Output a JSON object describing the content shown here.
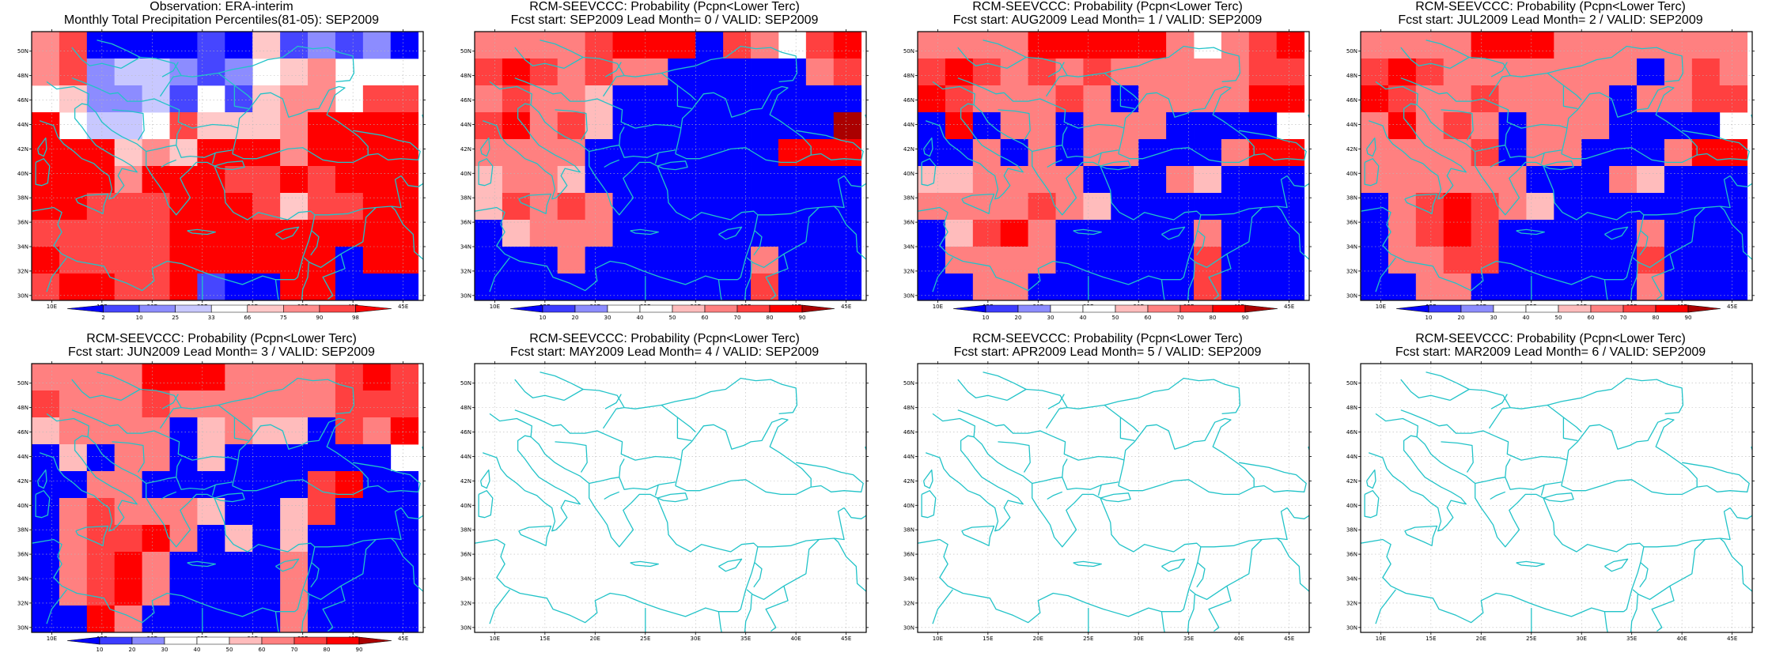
{
  "map_extent": {
    "lon": [
      8,
      47
    ],
    "lat": [
      29.6,
      51.6
    ]
  },
  "lon_ticks": [
    {
      "value": 10,
      "label": "10E"
    },
    {
      "value": 15,
      "label": "15E"
    },
    {
      "value": 20,
      "label": "20E"
    },
    {
      "value": 25,
      "label": "25E"
    },
    {
      "value": 30,
      "label": "30E"
    },
    {
      "value": 35,
      "label": "35E"
    },
    {
      "value": 40,
      "label": "40E"
    },
    {
      "value": 45,
      "label": "45E"
    }
  ],
  "lat_ticks": [
    {
      "value": 30,
      "label": "30N"
    },
    {
      "value": 32,
      "label": "32N"
    },
    {
      "value": 34,
      "label": "34N"
    },
    {
      "value": 36,
      "label": "36N"
    },
    {
      "value": 38,
      "label": "38N"
    },
    {
      "value": 40,
      "label": "40N"
    },
    {
      "value": 42,
      "label": "42N"
    },
    {
      "value": 44,
      "label": "44N"
    },
    {
      "value": 46,
      "label": "46N"
    },
    {
      "value": 48,
      "label": "48N"
    },
    {
      "value": 50,
      "label": "50N"
    }
  ],
  "grid": {
    "lon_start": 8,
    "lon_step": 2.75,
    "cols": 14,
    "lat_start": 29.6,
    "lat_step": 2.2,
    "rows": 10
  },
  "colors": {
    "coast": "#22c3c8",
    "gridline": "#b8b8b8",
    "frame": "#000000"
  },
  "colorbars": {
    "obs": {
      "labels": [
        "2",
        "10",
        "25",
        "33",
        "66",
        "75",
        "90",
        "98"
      ],
      "colors": [
        "#0000ff",
        "#4646ff",
        "#8c8cff",
        "#c8c8ff",
        "#ffffff",
        "#ffc8c8",
        "#ff8c8c",
        "#ff4646",
        "#ff0000"
      ]
    },
    "prob": {
      "labels": [
        "10",
        "20",
        "30",
        "40",
        "50",
        "60",
        "70",
        "80",
        "90"
      ],
      "colors": [
        "#0000ff",
        "#3c3cff",
        "#8c8cff",
        "#ffffff",
        "#ffffff",
        "#ffbcbc",
        "#ff8080",
        "#ff4040",
        "#ff0000",
        "#aa0000"
      ]
    }
  },
  "panels": [
    {
      "title1": "Observation: ERA-interim",
      "title2": "Monthly Total Precipitation Percentiles(81-05): SEP2009",
      "colorbar": "obs",
      "rows": [
        [
          6,
          7,
          0,
          0,
          0,
          0,
          1,
          0,
          5,
          1,
          2,
          1,
          2,
          0
        ],
        [
          6,
          7,
          2,
          3,
          3,
          2,
          1,
          2,
          4,
          5,
          6,
          4,
          4,
          4
        ],
        [
          4,
          5,
          2,
          2,
          3,
          1,
          4,
          1,
          5,
          6,
          6,
          4,
          7,
          7
        ],
        [
          8,
          4,
          3,
          3,
          4,
          7,
          5,
          5,
          5,
          6,
          8,
          8,
          8,
          8
        ],
        [
          8,
          8,
          8,
          5,
          6,
          5,
          8,
          8,
          8,
          6,
          8,
          8,
          8,
          8
        ],
        [
          8,
          8,
          8,
          6,
          8,
          8,
          8,
          7,
          7,
          8,
          7,
          8,
          8,
          8
        ],
        [
          8,
          8,
          7,
          7,
          7,
          8,
          8,
          8,
          7,
          5,
          7,
          7,
          8,
          8
        ],
        [
          7,
          7,
          7,
          7,
          7,
          8,
          8,
          8,
          8,
          8,
          8,
          8,
          8,
          8
        ],
        [
          8,
          7,
          7,
          7,
          7,
          8,
          8,
          8,
          8,
          8,
          8,
          0,
          8,
          8
        ],
        [
          7,
          8,
          8,
          7,
          7,
          8,
          1,
          0,
          0,
          8,
          8,
          0,
          0,
          0
        ]
      ]
    },
    {
      "title1": "RCM-SEEVCCC: Probability (Pcpn<Lower Terc)",
      "title2": "Fcst start: SEP2009   Lead Month= 0 / VALID: SEP2009",
      "colorbar": "prob",
      "rows": [
        [
          6,
          6,
          6,
          6,
          7,
          8,
          8,
          8,
          0,
          7,
          6,
          4,
          7,
          8
        ],
        [
          7,
          8,
          7,
          6,
          7,
          6,
          6,
          0,
          0,
          0,
          0,
          0,
          6,
          7
        ],
        [
          6,
          7,
          6,
          6,
          5,
          0,
          0,
          0,
          0,
          0,
          0,
          0,
          0,
          0
        ],
        [
          7,
          8,
          6,
          7,
          5,
          0,
          0,
          0,
          0,
          0,
          0,
          0,
          0,
          9
        ],
        [
          6,
          6,
          6,
          6,
          0,
          0,
          0,
          0,
          0,
          0,
          0,
          8,
          8,
          8
        ],
        [
          5,
          6,
          6,
          5,
          0,
          0,
          0,
          0,
          0,
          0,
          0,
          0,
          0,
          0
        ],
        [
          5,
          7,
          6,
          7,
          6,
          0,
          0,
          0,
          0,
          0,
          0,
          0,
          0,
          0
        ],
        [
          0,
          5,
          6,
          6,
          6,
          0,
          0,
          0,
          0,
          0,
          0,
          0,
          0,
          0
        ],
        [
          0,
          0,
          0,
          6,
          0,
          0,
          0,
          0,
          0,
          0,
          6,
          0,
          0,
          0
        ],
        [
          0,
          0,
          0,
          0,
          0,
          0,
          0,
          0,
          0,
          0,
          7,
          0,
          0,
          0
        ]
      ]
    },
    {
      "title1": "RCM-SEEVCCC: Probability (Pcpn<Lower Terc)",
      "title2": "Fcst start: AUG2009   Lead Month= 1 / VALID: SEP2009",
      "colorbar": "prob",
      "rows": [
        [
          6,
          6,
          6,
          6,
          8,
          8,
          8,
          8,
          8,
          6,
          4,
          6,
          7,
          8
        ],
        [
          7,
          8,
          7,
          6,
          7,
          6,
          7,
          6,
          6,
          6,
          6,
          6,
          7,
          7
        ],
        [
          8,
          7,
          6,
          6,
          6,
          7,
          6,
          0,
          6,
          6,
          6,
          6,
          8,
          8
        ],
        [
          0,
          8,
          0,
          6,
          6,
          0,
          6,
          6,
          6,
          0,
          0,
          0,
          0,
          10
        ],
        [
          0,
          0,
          6,
          0,
          6,
          0,
          6,
          6,
          0,
          0,
          0,
          6,
          8,
          8
        ],
        [
          5,
          5,
          6,
          6,
          6,
          6,
          0,
          0,
          0,
          6,
          5,
          0,
          0,
          0
        ],
        [
          6,
          6,
          6,
          6,
          7,
          6,
          5,
          0,
          0,
          0,
          0,
          0,
          0,
          0
        ],
        [
          0,
          5,
          7,
          8,
          6,
          0,
          0,
          0,
          0,
          0,
          6,
          0,
          0,
          0
        ],
        [
          0,
          6,
          6,
          6,
          6,
          0,
          0,
          0,
          0,
          0,
          7,
          0,
          0,
          0
        ],
        [
          0,
          0,
          6,
          6,
          0,
          0,
          0,
          0,
          0,
          0,
          7,
          0,
          0,
          0
        ]
      ]
    },
    {
      "title1": "RCM-SEEVCCC: Probability (Pcpn<Lower Terc)",
      "title2": "Fcst start: JUL2009   Lead Month= 2 / VALID: SEP2009",
      "colorbar": "prob",
      "rows": [
        [
          6,
          6,
          6,
          6,
          8,
          8,
          8,
          6,
          6,
          6,
          6,
          6,
          6,
          6
        ],
        [
          7,
          8,
          7,
          6,
          6,
          6,
          6,
          6,
          6,
          6,
          0,
          6,
          7,
          6
        ],
        [
          8,
          7,
          6,
          6,
          7,
          6,
          6,
          6,
          6,
          0,
          6,
          6,
          7,
          7
        ],
        [
          6,
          8,
          6,
          7,
          6,
          0,
          6,
          6,
          6,
          0,
          0,
          0,
          0,
          10
        ],
        [
          6,
          6,
          6,
          6,
          7,
          0,
          6,
          6,
          0,
          0,
          0,
          6,
          8,
          8
        ],
        [
          6,
          6,
          6,
          6,
          6,
          6,
          0,
          0,
          0,
          6,
          5,
          0,
          0,
          0
        ],
        [
          0,
          6,
          7,
          8,
          7,
          6,
          5,
          0,
          0,
          0,
          0,
          0,
          0,
          0
        ],
        [
          0,
          6,
          7,
          8,
          7,
          0,
          0,
          0,
          0,
          0,
          6,
          0,
          0,
          0
        ],
        [
          0,
          6,
          6,
          7,
          7,
          0,
          0,
          0,
          0,
          0,
          7,
          0,
          0,
          0
        ],
        [
          0,
          0,
          6,
          6,
          0,
          0,
          0,
          0,
          0,
          0,
          6,
          0,
          0,
          0
        ]
      ]
    },
    {
      "title1": "RCM-SEEVCCC: Probability (Pcpn<Lower Terc)",
      "title2": "Fcst start: JUN2009   Lead Month= 3 / VALID: SEP2009",
      "colorbar": "prob",
      "rows": [
        [
          6,
          6,
          6,
          6,
          8,
          8,
          8,
          6,
          6,
          6,
          6,
          7,
          8,
          7
        ],
        [
          7,
          6,
          6,
          6,
          7,
          6,
          6,
          6,
          6,
          6,
          6,
          7,
          7,
          7
        ],
        [
          5,
          6,
          6,
          6,
          6,
          0,
          5,
          6,
          5,
          5,
          0,
          7,
          6,
          8
        ],
        [
          0,
          5,
          0,
          6,
          6,
          0,
          5,
          0,
          0,
          0,
          0,
          0,
          0,
          10
        ],
        [
          0,
          0,
          6,
          6,
          0,
          0,
          0,
          0,
          0,
          0,
          7,
          8,
          0,
          0
        ],
        [
          0,
          6,
          7,
          6,
          6,
          6,
          5,
          0,
          0,
          5,
          7,
          0,
          0,
          0
        ],
        [
          0,
          6,
          7,
          7,
          8,
          6,
          0,
          5,
          0,
          5,
          0,
          0,
          0,
          0
        ],
        [
          0,
          6,
          7,
          8,
          6,
          0,
          0,
          0,
          0,
          6,
          0,
          0,
          0,
          0
        ],
        [
          0,
          6,
          7,
          8,
          6,
          0,
          0,
          0,
          0,
          6,
          0,
          0,
          0,
          0
        ],
        [
          0,
          0,
          8,
          6,
          0,
          0,
          0,
          0,
          0,
          6,
          0,
          0,
          0,
          0
        ]
      ]
    },
    {
      "title1": "RCM-SEEVCCC: Probability (Pcpn<Lower Terc)",
      "title2": "Fcst start: MAY2009   Lead Month= 4 / VALID: SEP2009",
      "colorbar": "none",
      "rows": []
    },
    {
      "title1": "RCM-SEEVCCC: Probability (Pcpn<Lower Terc)",
      "title2": "Fcst start: APR2009   Lead Month= 5 / VALID: SEP2009",
      "colorbar": "none",
      "rows": []
    },
    {
      "title1": "RCM-SEEVCCC: Probability (Pcpn<Lower Terc)",
      "title2": "Fcst start: MAR2009   Lead Month= 6 / VALID: SEP2009",
      "colorbar": "none",
      "rows": []
    }
  ]
}
